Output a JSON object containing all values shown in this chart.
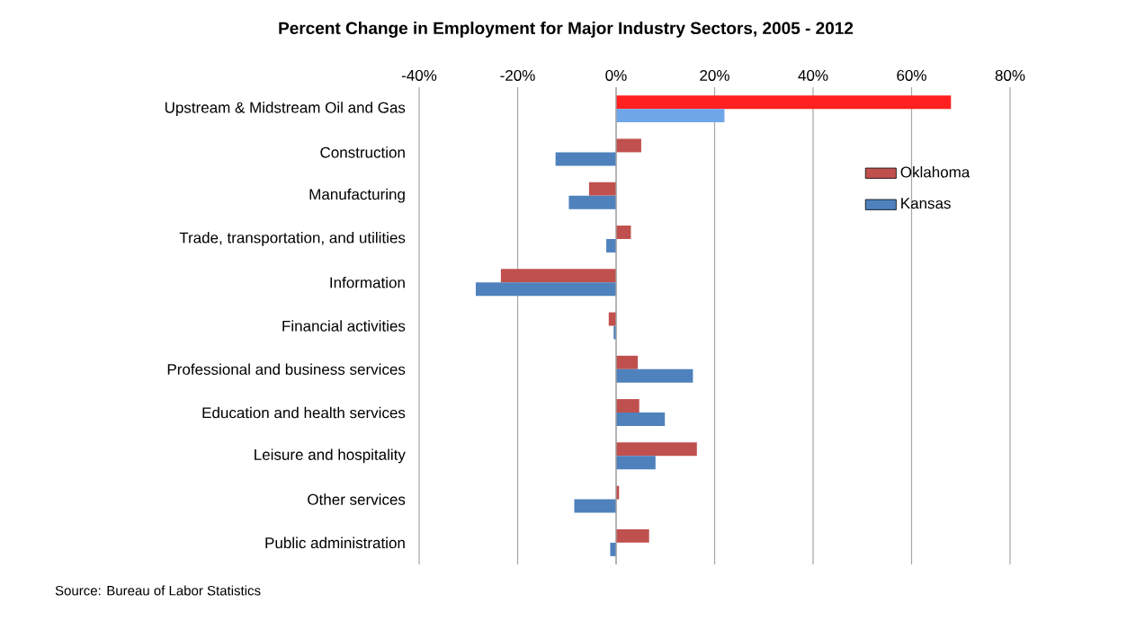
{
  "chart_data": {
    "type": "bar",
    "orientation": "horizontal",
    "title": "Percent Change in Employment for Major Industry Sectors, 2005 - 2012",
    "categories": [
      "Upstream & Midstream Oil and Gas",
      "Construction",
      "Manufacturing",
      "Trade, transportation, and utilities",
      "Information",
      "Financial activities",
      "Professional and business services",
      "Education and health services",
      "Leisure and hospitality",
      "Other services",
      "Public administration"
    ],
    "series": [
      {
        "name": "Oklahoma",
        "color": "#c0504d",
        "colors": [
          "#ff2020",
          "#c0504d",
          "#c0504d",
          "#c0504d",
          "#c0504d",
          "#c0504d",
          "#c0504d",
          "#c0504d",
          "#c0504d",
          "#c0504d",
          "#c0504d"
        ],
        "values": [
          68,
          5.1,
          -5.5,
          3.0,
          -23.4,
          -1.5,
          4.4,
          4.7,
          16.4,
          0.6,
          6.7
        ]
      },
      {
        "name": "Kansas",
        "color": "#4f81bd",
        "colors": [
          "#6fa6e8",
          "#4f81bd",
          "#4f81bd",
          "#4f81bd",
          "#4f81bd",
          "#4f81bd",
          "#4f81bd",
          "#4f81bd",
          "#4f81bd",
          "#4f81bd",
          "#4f81bd"
        ],
        "values": [
          22,
          -12.3,
          -9.6,
          -2.0,
          -28.5,
          -0.5,
          15.6,
          9.9,
          8.0,
          -8.5,
          -1.2
        ]
      }
    ],
    "xlim": [
      -40,
      80
    ],
    "xticks": [
      {
        "value": -40,
        "label": "-40%"
      },
      {
        "value": -20,
        "label": "-20%"
      },
      {
        "value": 0,
        "label": "0%"
      },
      {
        "value": 20,
        "label": "20%"
      },
      {
        "value": 40,
        "label": "40%"
      },
      {
        "value": 60,
        "label": "60%"
      },
      {
        "value": 80,
        "label": "80%"
      }
    ],
    "grid": "x",
    "legend": "right",
    "annotations": [
      "Source:  Bureau of Labor Statistics"
    ]
  }
}
